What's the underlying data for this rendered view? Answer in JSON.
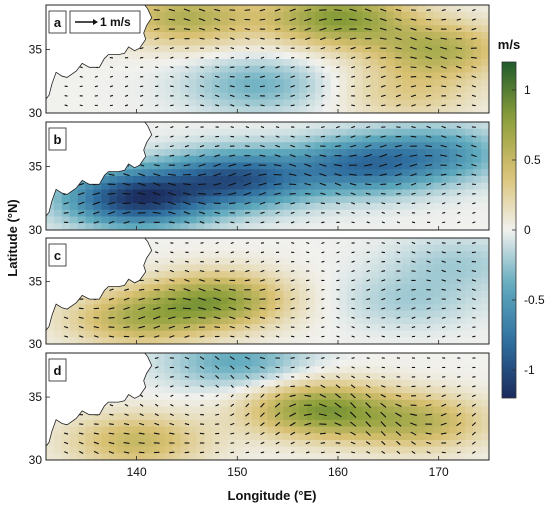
{
  "chart_data": {
    "type": "heatmap",
    "xlabel": "Longitude (°E)",
    "ylabel": "Latitude (°N)",
    "x_ticks": [
      140,
      150,
      160,
      170
    ],
    "y_ticks": [
      30,
      35
    ],
    "xlim": [
      131,
      175
    ],
    "ylim": [
      30,
      38.5
    ],
    "colorbar": {
      "unit": "m/s",
      "range": [
        -1.2,
        1.2
      ],
      "ticks": [
        1,
        0.5,
        0,
        -0.5,
        -1
      ],
      "tick_labels": [
        "1",
        "0.5",
        "0",
        "-0.5",
        "-1"
      ],
      "colors": [
        "#1b2a5c",
        "#2f6fa0",
        "#5ea9bd",
        "#f1f1ee",
        "#d9c173",
        "#8c9f3a",
        "#1f5a2c"
      ]
    },
    "vector_scale_label": "1 m/s",
    "panels": [
      {
        "label": "a",
        "field_description": "eastward-dominant positive anomaly north, weak negative lobe centered near 152°E 32°N",
        "centers": [
          {
            "lon": 160,
            "lat": 37.5,
            "value": 0.8
          },
          {
            "lon": 145,
            "lat": 37.5,
            "value": 0.6
          },
          {
            "lon": 170,
            "lat": 35,
            "value": 0.6
          },
          {
            "lon": 152,
            "lat": 32.2,
            "value": -0.35
          },
          {
            "lon": 167,
            "lat": 31.5,
            "value": 0.3
          }
        ]
      },
      {
        "label": "b",
        "field_description": "strong negative anomaly band along Kuroshio extension",
        "centers": [
          {
            "lon": 140,
            "lat": 32.5,
            "value": -1.1
          },
          {
            "lon": 150,
            "lat": 34,
            "value": -0.9
          },
          {
            "lon": 162,
            "lat": 35,
            "value": -0.7
          },
          {
            "lon": 170,
            "lat": 36,
            "value": -0.5
          }
        ]
      },
      {
        "label": "c",
        "field_description": "positive anomaly band 140–158°E near 33.5°N, weak negative patches east",
        "centers": [
          {
            "lon": 148,
            "lat": 33.5,
            "value": 0.75
          },
          {
            "lon": 140,
            "lat": 32,
            "value": 0.55
          },
          {
            "lon": 167,
            "lat": 33.5,
            "value": -0.2
          },
          {
            "lon": 172,
            "lat": 36.5,
            "value": -0.2
          }
        ]
      },
      {
        "label": "d",
        "field_description": "positive anomaly in central basin, negative strip near 38°N 145–160°E",
        "centers": [
          {
            "lon": 158,
            "lat": 34,
            "value": 0.8
          },
          {
            "lon": 140,
            "lat": 31.5,
            "value": 0.5
          },
          {
            "lon": 150,
            "lat": 37.8,
            "value": -0.4
          },
          {
            "lon": 168,
            "lat": 33,
            "value": 0.55
          }
        ]
      }
    ]
  }
}
